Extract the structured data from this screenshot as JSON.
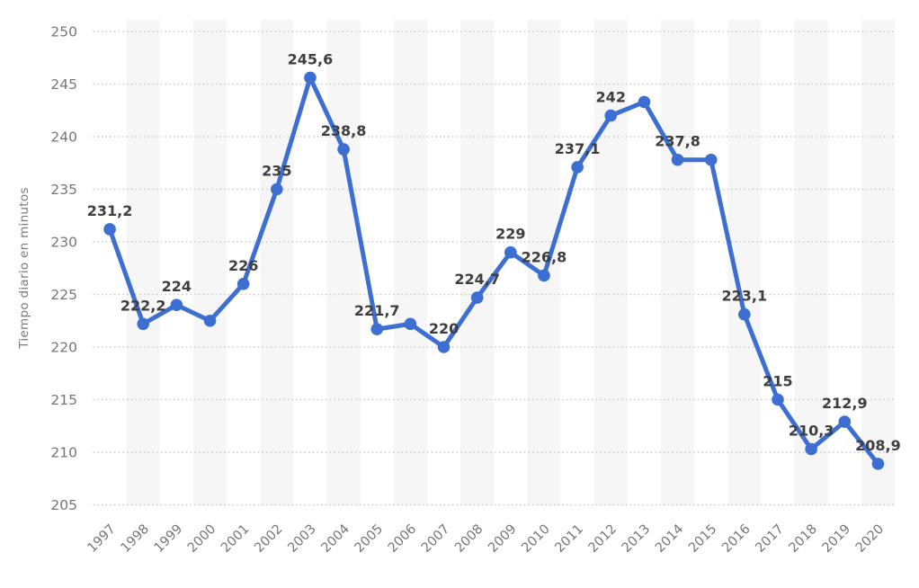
{
  "chart_data": {
    "type": "line",
    "title": "",
    "xlabel": "",
    "ylabel": "Tiempo diario en minutos",
    "categories": [
      "1997",
      "1998",
      "1999",
      "2000",
      "2001",
      "2002",
      "2003",
      "2004",
      "2005",
      "2006",
      "2007",
      "2008",
      "2009",
      "2010",
      "2011",
      "2012",
      "2013",
      "2014",
      "2015",
      "2016",
      "2017",
      "2018",
      "2019",
      "2020"
    ],
    "values": [
      231.2,
      222.2,
      224,
      222.5,
      226,
      235,
      245.6,
      238.8,
      221.7,
      222.2,
      220,
      224.7,
      229,
      226.8,
      237.1,
      242,
      243.3,
      237.8,
      237.8,
      223.1,
      215,
      210.3,
      212.9,
      208.9
    ],
    "point_labels": [
      "231,2",
      "222,2",
      "224",
      "",
      "226",
      "235",
      "245,6",
      "238,8",
      "221,7",
      "",
      "220",
      "224,7",
      "229",
      "226,8",
      "237,1",
      "242",
      "",
      "237,8",
      "",
      "223,1",
      "215",
      "210,3",
      "212,9",
      "208,9"
    ],
    "y_ticks": [
      205,
      210,
      215,
      220,
      225,
      230,
      235,
      240,
      245,
      250
    ],
    "ylim": [
      205,
      250
    ],
    "ytick_step": 5,
    "grid": "horizontal-dotted",
    "legend": "none",
    "colors": {
      "line": "#3d6ed2",
      "point": "#3d6ed2",
      "band": "#f6f6f6",
      "gridline": "#c9c9c9",
      "axis_text": "#767676",
      "data_label": "#3e3e3e"
    }
  }
}
